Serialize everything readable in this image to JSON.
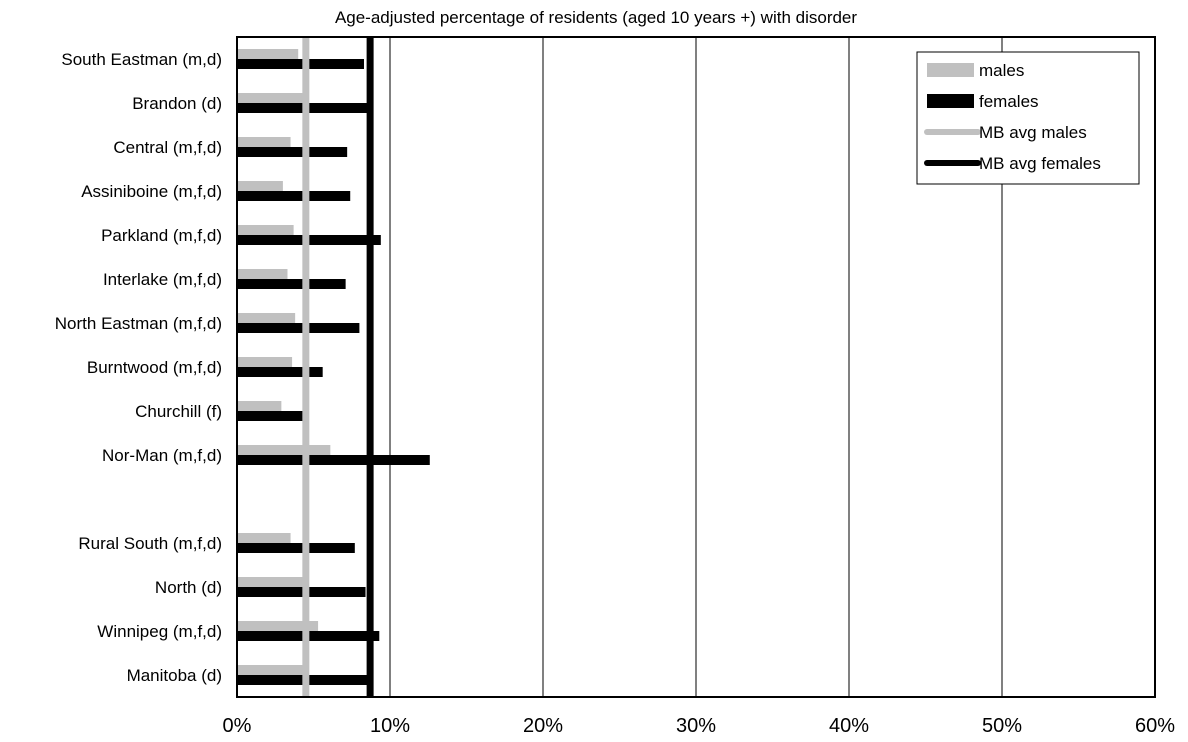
{
  "chart_data": {
    "type": "bar",
    "orientation": "horizontal",
    "title": "Age-adjusted percentage of residents (aged 10 years +) with disorder",
    "categories": [
      "South Eastman (m,d)",
      "Brandon (d)",
      "Central (m,f,d)",
      "Assiniboine (m,f,d)",
      "Parkland (m,f,d)",
      "Interlake (m,f,d)",
      "North Eastman (m,f,d)",
      "Burntwood (m,f,d)",
      "Churchill (f)",
      "Nor-Man (m,f,d)",
      "",
      "Rural South (m,f,d)",
      "North (d)",
      "Winnipeg (m,f,d)",
      "Manitoba (d)"
    ],
    "series": [
      {
        "name": "males",
        "color": "#c0c0c0",
        "values": [
          4.0,
          4.5,
          3.5,
          3.0,
          3.7,
          3.3,
          3.8,
          3.6,
          2.9,
          6.1,
          null,
          3.5,
          4.5,
          5.3,
          4.5
        ]
      },
      {
        "name": "females",
        "color": "#000000",
        "values": [
          8.3,
          8.5,
          7.2,
          7.4,
          9.4,
          7.1,
          8.0,
          5.6,
          4.4,
          12.6,
          null,
          7.7,
          8.4,
          9.3,
          8.7
        ]
      }
    ],
    "reference_lines": [
      {
        "name": "MB avg males",
        "value": 4.5,
        "color": "#c0c0c0"
      },
      {
        "name": "MB avg females",
        "value": 8.7,
        "color": "#000000"
      }
    ],
    "xlim": [
      0,
      60
    ],
    "x_ticks": [
      "0%",
      "10%",
      "20%",
      "30%",
      "40%",
      "50%",
      "60%"
    ],
    "x_tick_values": [
      0,
      10,
      20,
      30,
      40,
      50,
      60
    ],
    "legend": {
      "placement": "top-right",
      "entries": [
        "males",
        "females",
        "MB avg males",
        "MB avg females"
      ]
    },
    "grid": "vertical"
  }
}
